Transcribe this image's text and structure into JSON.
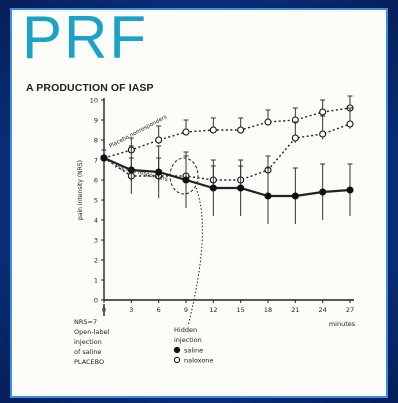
{
  "brand": {
    "logo_text": "PRF",
    "tagline": "A PRODUCTION OF IASP",
    "logo_color": "#1aa2c9"
  },
  "figure": {
    "ylabel": "pain intensity (NRS)",
    "x_unit_label": "minutes",
    "label_left_1": "NRS=7",
    "label_left_2": "Open-label",
    "label_left_3": "injection",
    "label_left_4": "of saline",
    "label_left_5": "PLACEBO",
    "hidden_1": "Hidden",
    "hidden_2": "injection",
    "legend_saline": "saline",
    "legend_naloxone": "naloxone",
    "anno_upper": "Placebo nonresponders",
    "anno_lower": "Placebo responders"
  },
  "chart_data": {
    "type": "line",
    "ylim": [
      0,
      10
    ],
    "yticks": [
      "0",
      "1",
      "2",
      "3",
      "4",
      "5",
      "6",
      "7",
      "8",
      "9",
      "10"
    ],
    "xticks": [
      "0",
      "3",
      "6",
      "9",
      "12",
      "15",
      "18",
      "21",
      "24",
      "27"
    ],
    "series": [
      {
        "group": "nonresponders",
        "marker": "open",
        "style": "dotted",
        "x": [
          0,
          3,
          6,
          9,
          12,
          15,
          18,
          21,
          24,
          27
        ],
        "y": [
          7.1,
          7.5,
          8.0,
          8.4,
          8.5,
          8.5,
          8.9,
          9.0,
          9.4,
          9.6
        ],
        "err": [
          0.4,
          0.6,
          0.7,
          0.6,
          0.6,
          0.6,
          0.6,
          0.6,
          0.6,
          0.6
        ]
      },
      {
        "group": "responders-naloxone",
        "marker": "open",
        "style": "dotted",
        "x": [
          0,
          3,
          6,
          9,
          12,
          15,
          18,
          21,
          24,
          27
        ],
        "y": [
          7.1,
          6.2,
          6.2,
          6.2,
          6.0,
          6.0,
          6.5,
          8.1,
          8.3,
          8.8
        ],
        "err": [
          0.4,
          0.9,
          0.9,
          1.0,
          0.7,
          0.7,
          0.7,
          0.8,
          0.9,
          0.8
        ]
      },
      {
        "group": "responders-saline",
        "marker": "filled",
        "style": "solid",
        "x": [
          0,
          3,
          6,
          9,
          12,
          15,
          18,
          21,
          24,
          27
        ],
        "y": [
          7.1,
          6.5,
          6.4,
          6.0,
          5.6,
          5.6,
          5.2,
          5.2,
          5.4,
          5.5
        ],
        "err": [
          0.4,
          1.2,
          1.3,
          1.4,
          1.4,
          1.4,
          1.4,
          1.4,
          1.4,
          1.3
        ]
      }
    ]
  }
}
